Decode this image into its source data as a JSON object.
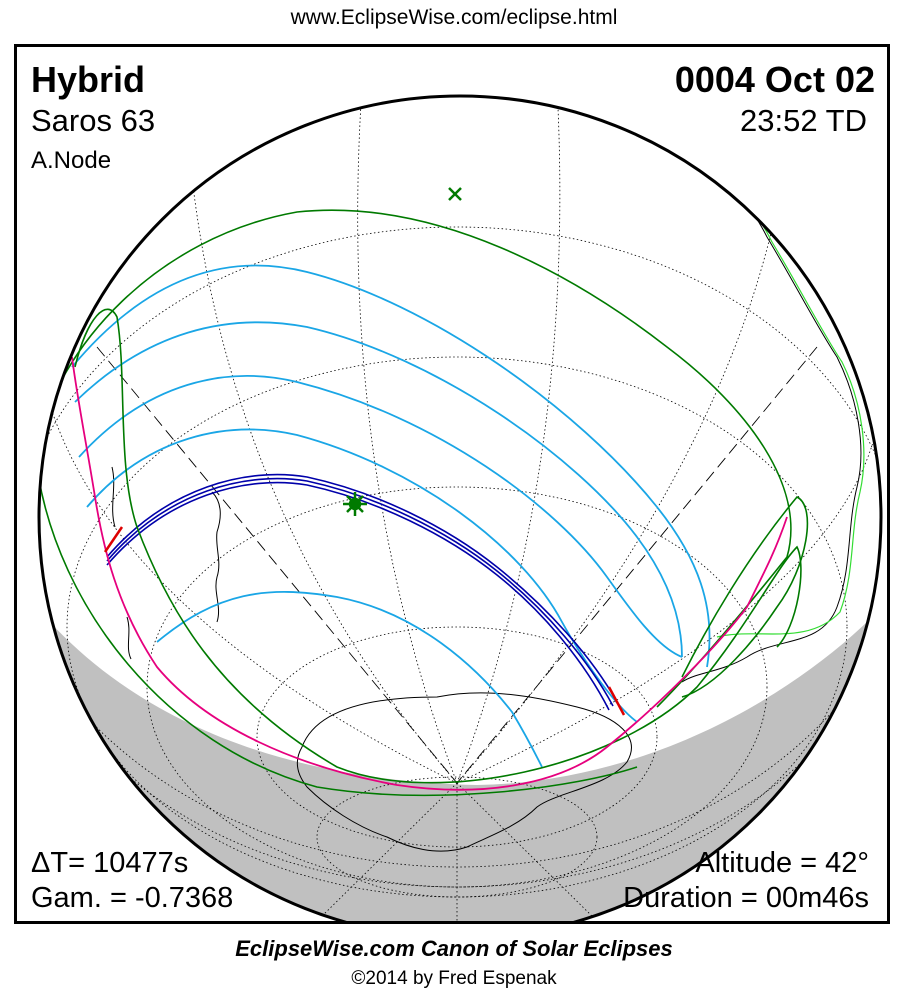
{
  "header": {
    "url": "www.EclipseWise.com/eclipse.html"
  },
  "eclipse": {
    "type": "Hybrid",
    "saros": "Saros  63",
    "node": "A.Node",
    "date": "0004 Oct 02",
    "time": "23:52 TD",
    "delta_t": "ΔT=  10477s",
    "gamma": "Gam. = -0.7368",
    "altitude": "Altitude = 42°",
    "duration": "Duration = 00m46s"
  },
  "footer": {
    "canon": "EclipseWise.com Canon of Solar Eclipses",
    "copyright": "©2014 by Fred Espenak"
  },
  "colors": {
    "penumbra": "#007a00",
    "partial_lines": "#1aa6e6",
    "central_path": "#0000aa",
    "rise_set": "#e6007e",
    "limit_marks": "#dd0000",
    "night": "#c0c0c0",
    "coastline_highlight": "#33dd33",
    "greatest_eclipse": "#007a00"
  },
  "icons": {
    "greatest_eclipse": "star-marker",
    "subsolar_point": "x-marker"
  }
}
